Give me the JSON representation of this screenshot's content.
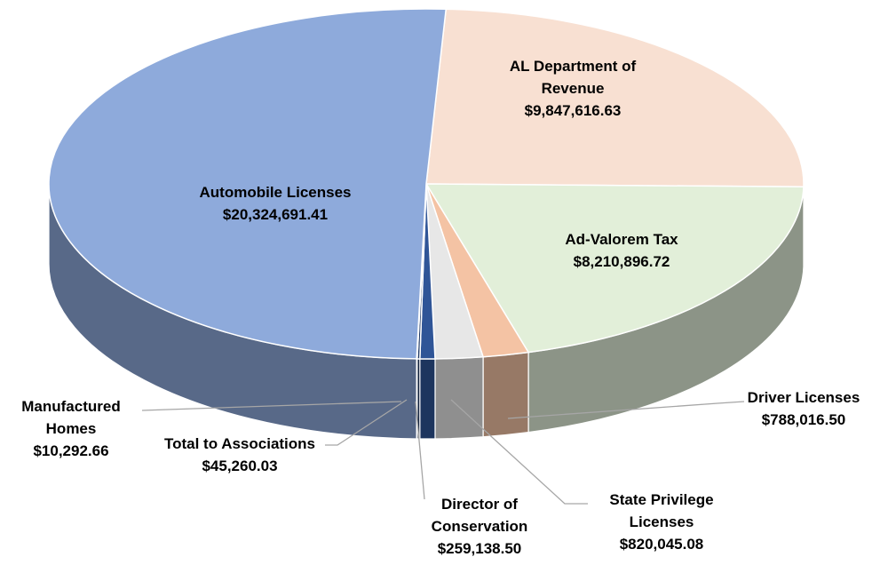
{
  "chart_data": {
    "type": "pie",
    "categories": [
      "AL Department of Revenue",
      "Ad-Valorem Tax",
      "Driver Licenses",
      "State Privilege Licenses",
      "Director of Conservation",
      "Total to Associations",
      "Manufactured Homes",
      "Automobile Licenses"
    ],
    "values": [
      9847616.63,
      8210896.72,
      788016.5,
      820045.08,
      259138.5,
      45260.03,
      10292.66,
      20324691.41
    ],
    "value_labels": [
      "$9,847,616.63",
      "$8,210,896.72",
      "$788,016.50",
      "$820,045.08",
      "$259,138.50",
      "$45,260.03",
      "$10,292.66",
      "$20,324,691.41"
    ],
    "colors": [
      "#f8e0d2",
      "#e2efd9",
      "#f4c3a4",
      "#e7e7e7",
      "#2f5597",
      "#1f3864",
      "#c9c9c9",
      "#8eaadb"
    ]
  }
}
